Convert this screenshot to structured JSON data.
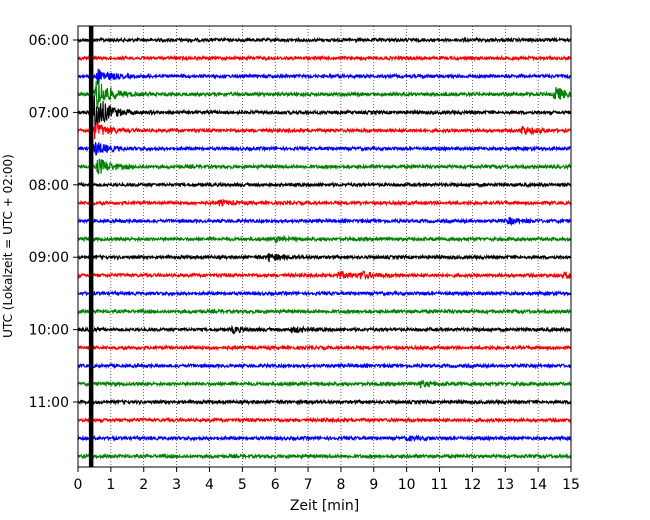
{
  "chart_data": {
    "type": "line",
    "title": "",
    "xlabel": "Zeit  [min]",
    "ylabel": "UTC (Lokalzeit = UTC + 02:00)",
    "xlim": [
      0,
      15
    ],
    "x_ticks": [
      "0",
      "1",
      "2",
      "3",
      "4",
      "5",
      "6",
      "7",
      "8",
      "9",
      "10",
      "11",
      "12",
      "13",
      "14",
      "15"
    ],
    "y_ticks": [
      {
        "time": "06:00",
        "trace_index": 0
      },
      {
        "time": "07:00",
        "trace_index": 4
      },
      {
        "time": "08:00",
        "trace_index": 8
      },
      {
        "time": "09:00",
        "trace_index": 12
      },
      {
        "time": "10:00",
        "trace_index": 16
      },
      {
        "time": "11:00",
        "trace_index": 20
      }
    ],
    "grid": "vertical-dotted",
    "trace_interval_min": 15,
    "trace_colors": [
      "#000000",
      "#ff0000",
      "#0000ff",
      "#008000"
    ],
    "trace_count": 24,
    "vertical_marker_x": 0.4,
    "events": [
      {
        "trace_index": 2,
        "x": 0.6,
        "amplitude": 0.5
      },
      {
        "trace_index": 3,
        "x": 0.55,
        "amplitude": 1.2
      },
      {
        "trace_index": 4,
        "x": 0.5,
        "amplitude": 1.5
      },
      {
        "trace_index": 5,
        "x": 0.5,
        "amplitude": 0.6
      },
      {
        "trace_index": 6,
        "x": 0.5,
        "amplitude": 0.5
      },
      {
        "trace_index": 7,
        "x": 0.6,
        "amplitude": 0.6
      },
      {
        "trace_index": 3,
        "x": 14.5,
        "amplitude": 0.5
      },
      {
        "trace_index": 5,
        "x": 13.5,
        "amplitude": 0.3
      },
      {
        "trace_index": 12,
        "x": 5.8,
        "amplitude": 0.25
      },
      {
        "trace_index": 13,
        "x": 7.9,
        "amplitude": 0.25
      },
      {
        "trace_index": 13,
        "x": 8.6,
        "amplitude": 0.22
      },
      {
        "trace_index": 13,
        "x": 14.8,
        "amplitude": 0.2
      },
      {
        "trace_index": 10,
        "x": 13.1,
        "amplitude": 0.2
      },
      {
        "trace_index": 16,
        "x": 4.7,
        "amplitude": 0.18
      },
      {
        "trace_index": 16,
        "x": 6.5,
        "amplitude": 0.18
      },
      {
        "trace_index": 19,
        "x": 10.4,
        "amplitude": 0.18
      },
      {
        "trace_index": 9,
        "x": 4.3,
        "amplitude": 0.16
      },
      {
        "trace_index": 11,
        "x": 6.0,
        "amplitude": 0.15
      },
      {
        "trace_index": 22,
        "x": 10.0,
        "amplitude": 0.12
      }
    ]
  }
}
